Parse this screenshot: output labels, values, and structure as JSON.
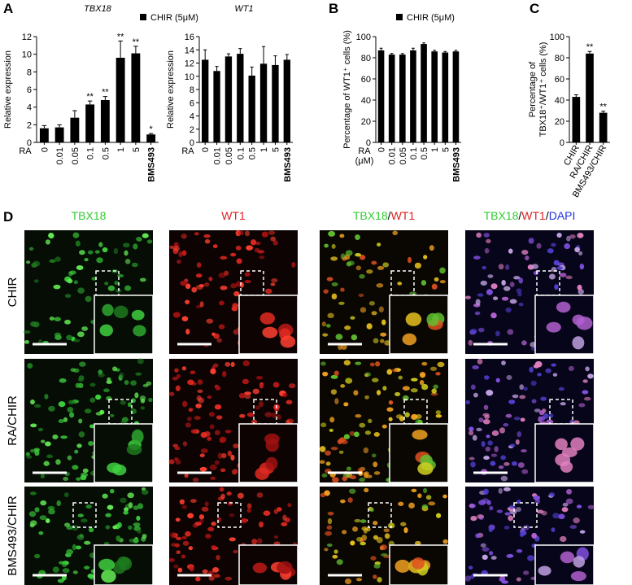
{
  "panel_labels": [
    "A",
    "B",
    "C",
    "D"
  ],
  "chart_data": [
    {
      "type": "bar",
      "title": "TBX18",
      "ylabel": "Relative expression",
      "xlabel": "RA",
      "categories": [
        "0",
        "0.01",
        "0.05",
        "0.1",
        "0.5",
        "1",
        "5",
        "BMS493"
      ],
      "series": [
        {
          "name": "CHIR (5μM)",
          "color": "#000000",
          "values": [
            1.6,
            1.7,
            2.8,
            4.3,
            4.8,
            9.6,
            10.1,
            0.9
          ],
          "errors": [
            0.3,
            0.3,
            0.8,
            0.4,
            0.4,
            1.9,
            0.8,
            0.1
          ]
        }
      ],
      "annotations": [
        null,
        null,
        null,
        "**",
        "**",
        "**",
        "**",
        "*"
      ],
      "ylim": [
        0,
        12
      ],
      "yticks": [
        0,
        2,
        4,
        6,
        8,
        10,
        12
      ],
      "legend": true
    },
    {
      "type": "bar",
      "title": "WT1",
      "ylabel": "Relative expression",
      "xlabel": "RA",
      "categories": [
        "0",
        "0.01",
        "0.05",
        "0.1",
        "0.5",
        "1",
        "5",
        "BMS493"
      ],
      "series": [
        {
          "color": "#000000",
          "values": [
            12.5,
            10.8,
            13.0,
            13.4,
            10.1,
            11.9,
            11.7,
            12.5
          ],
          "errors": [
            1.5,
            0.7,
            0.4,
            0.8,
            1.3,
            2.6,
            1.4,
            0.8
          ]
        }
      ],
      "ylim": [
        0,
        16
      ],
      "yticks": [
        0,
        2,
        4,
        6,
        8,
        10,
        12,
        14,
        16
      ],
      "legend": false
    },
    {
      "type": "bar",
      "ylabel": "Percentage of WT1⁺ cells (%)",
      "xlabel": [
        "RA",
        "(μM)"
      ],
      "categories": [
        "0",
        "0.01",
        "0.05",
        "0.1",
        "0.5",
        "1",
        "5",
        "BMS493"
      ],
      "series": [
        {
          "name": "CHIR (5μM)",
          "color": "#000000",
          "values": [
            87,
            83,
            83,
            87,
            93,
            86,
            85,
            86
          ],
          "errors": [
            2,
            1,
            1,
            2,
            1,
            1,
            1,
            1
          ]
        }
      ],
      "ylim": [
        0,
        100
      ],
      "yticks": [
        0,
        20,
        40,
        60,
        80,
        100
      ],
      "legend": true
    },
    {
      "type": "bar",
      "ylabel": [
        "Percentage of",
        "TBX18⁺/WT1⁺ cells (%)"
      ],
      "categories": [
        "CHIR",
        "RA/CHIR",
        "BMS493/CHIR"
      ],
      "series": [
        {
          "color": "#000000",
          "values": [
            43,
            84,
            28
          ],
          "errors": [
            2,
            2,
            1.5
          ]
        }
      ],
      "annotations": [
        null,
        "**",
        "**"
      ],
      "ylim": [
        0,
        100
      ],
      "yticks": [
        0,
        20,
        40,
        60,
        80,
        100
      ],
      "legend": false
    }
  ],
  "microscopy": {
    "columns": [
      [
        "TBX18"
      ],
      [
        "WT1"
      ],
      [
        "TBX18",
        "/",
        "WT1"
      ],
      [
        "TBX18",
        "/",
        "WT1",
        "/",
        "DAPI"
      ]
    ],
    "rows": [
      "CHIR",
      "RA/CHIR",
      "BMS493/CHIR"
    ]
  }
}
